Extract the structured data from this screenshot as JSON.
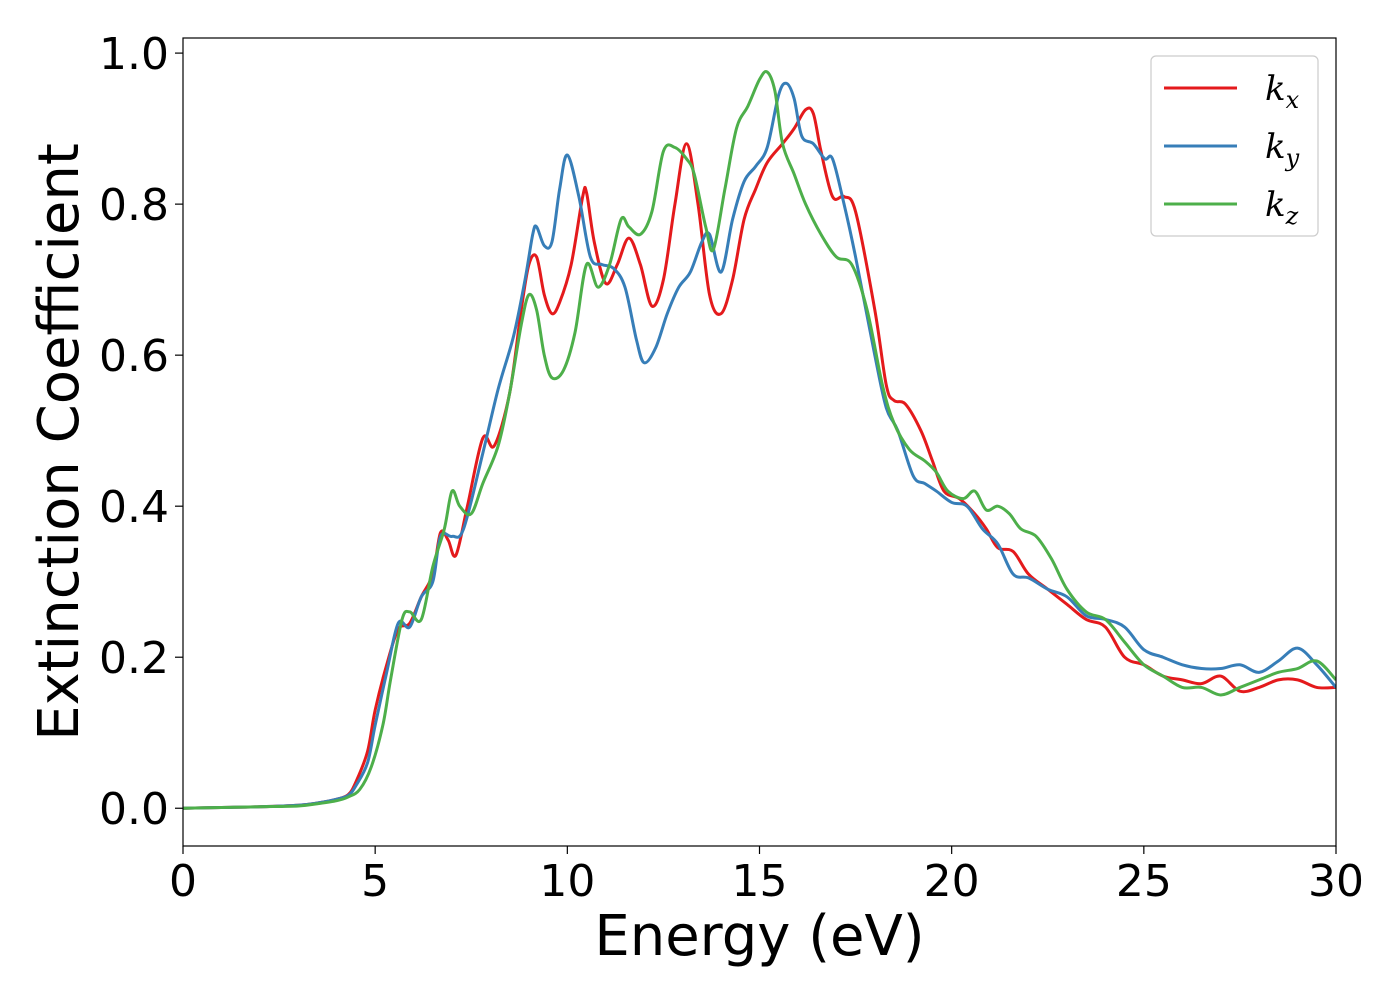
{
  "chart_data": {
    "type": "line",
    "xlabel": "Energy (eV)",
    "ylabel": "Extinction Coefficient",
    "xlim": [
      0,
      30
    ],
    "ylim": [
      -0.05,
      1.02
    ],
    "xticks": [
      0,
      5,
      10,
      15,
      20,
      25,
      30
    ],
    "yticks": [
      0.0,
      0.2,
      0.4,
      0.6,
      0.8,
      1.0
    ],
    "xtick_labels": [
      "0",
      "5",
      "10",
      "15",
      "20",
      "25",
      "30"
    ],
    "ytick_labels": [
      "0.0",
      "0.2",
      "0.4",
      "0.6",
      "0.8",
      "1.0"
    ],
    "grid": false,
    "legend_position": "top-right",
    "series": [
      {
        "name": "kx",
        "label_main": "k",
        "label_sub": "x",
        "color": "#e41a1c",
        "x": [
          0,
          1,
          2,
          3,
          3.5,
          4,
          4.3,
          4.5,
          4.8,
          5.0,
          5.3,
          5.6,
          5.9,
          6.2,
          6.5,
          6.7,
          6.9,
          7.1,
          7.4,
          7.8,
          8.1,
          8.5,
          8.8,
          9.0,
          9.2,
          9.4,
          9.6,
          9.8,
          10.1,
          10.4,
          10.5,
          10.7,
          11.0,
          11.3,
          11.6,
          11.9,
          12.2,
          12.5,
          12.8,
          13.1,
          13.4,
          13.7,
          14.0,
          14.3,
          14.6,
          14.9,
          15.2,
          15.6,
          15.9,
          16.2,
          16.4,
          16.6,
          16.9,
          17.2,
          17.5,
          18.0,
          18.3,
          18.5,
          18.8,
          19.2,
          19.5,
          19.8,
          20.2,
          20.6,
          20.9,
          21.2,
          21.6,
          22.0,
          22.5,
          23.0,
          23.5,
          24.0,
          24.5,
          25.0,
          25.5,
          26.0,
          26.5,
          27.0,
          27.5,
          28.0,
          28.5,
          29.0,
          29.5,
          30.0
        ],
        "y": [
          0.0,
          0.001,
          0.002,
          0.004,
          0.007,
          0.012,
          0.018,
          0.035,
          0.075,
          0.13,
          0.19,
          0.237,
          0.245,
          0.28,
          0.31,
          0.365,
          0.355,
          0.335,
          0.4,
          0.49,
          0.48,
          0.55,
          0.66,
          0.72,
          0.73,
          0.68,
          0.655,
          0.67,
          0.72,
          0.81,
          0.815,
          0.75,
          0.695,
          0.72,
          0.755,
          0.72,
          0.665,
          0.7,
          0.8,
          0.88,
          0.8,
          0.68,
          0.655,
          0.7,
          0.78,
          0.82,
          0.855,
          0.88,
          0.9,
          0.925,
          0.92,
          0.87,
          0.81,
          0.81,
          0.79,
          0.66,
          0.56,
          0.54,
          0.535,
          0.5,
          0.46,
          0.42,
          0.41,
          0.39,
          0.37,
          0.345,
          0.34,
          0.31,
          0.29,
          0.27,
          0.25,
          0.24,
          0.2,
          0.19,
          0.175,
          0.17,
          0.165,
          0.175,
          0.155,
          0.16,
          0.17,
          0.17,
          0.16,
          0.16
        ]
      },
      {
        "name": "ky",
        "label_main": "k",
        "label_sub": "y",
        "color": "#377eb8",
        "x": [
          0,
          1,
          2,
          3,
          3.5,
          4,
          4.3,
          4.5,
          4.8,
          5.0,
          5.3,
          5.6,
          5.9,
          6.2,
          6.5,
          6.7,
          7.0,
          7.3,
          7.8,
          8.2,
          8.6,
          8.9,
          9.1,
          9.2,
          9.4,
          9.6,
          9.8,
          10.0,
          10.3,
          10.6,
          10.9,
          11.2,
          11.5,
          11.8,
          12.0,
          12.3,
          12.6,
          12.9,
          13.2,
          13.5,
          13.7,
          14.0,
          14.3,
          14.6,
          14.9,
          15.2,
          15.5,
          15.7,
          15.9,
          16.1,
          16.4,
          16.7,
          16.9,
          17.2,
          17.5,
          18.0,
          18.3,
          18.6,
          19.0,
          19.3,
          19.6,
          20.0,
          20.4,
          20.8,
          21.2,
          21.6,
          22.0,
          22.5,
          23.0,
          23.5,
          24.0,
          24.5,
          25.0,
          25.5,
          26.0,
          26.5,
          27.0,
          27.5,
          28.0,
          28.5,
          29.0,
          29.5,
          30.0
        ],
        "y": [
          0.0,
          0.001,
          0.002,
          0.004,
          0.007,
          0.012,
          0.017,
          0.03,
          0.06,
          0.11,
          0.18,
          0.245,
          0.24,
          0.28,
          0.3,
          0.36,
          0.36,
          0.37,
          0.47,
          0.555,
          0.625,
          0.7,
          0.76,
          0.77,
          0.745,
          0.75,
          0.82,
          0.865,
          0.81,
          0.73,
          0.72,
          0.715,
          0.69,
          0.62,
          0.59,
          0.61,
          0.655,
          0.69,
          0.71,
          0.75,
          0.76,
          0.71,
          0.78,
          0.83,
          0.85,
          0.875,
          0.945,
          0.96,
          0.94,
          0.89,
          0.88,
          0.86,
          0.86,
          0.8,
          0.73,
          0.6,
          0.53,
          0.5,
          0.44,
          0.43,
          0.42,
          0.405,
          0.4,
          0.37,
          0.35,
          0.31,
          0.305,
          0.29,
          0.28,
          0.255,
          0.25,
          0.24,
          0.21,
          0.2,
          0.19,
          0.185,
          0.185,
          0.19,
          0.18,
          0.195,
          0.212,
          0.19,
          0.16
        ]
      },
      {
        "name": "kz",
        "label_main": "k",
        "label_sub": "z",
        "color": "#4daf4a",
        "x": [
          0,
          1,
          2,
          3,
          3.5,
          4,
          4.3,
          4.6,
          4.9,
          5.2,
          5.4,
          5.7,
          5.9,
          6.2,
          6.5,
          6.8,
          7.0,
          7.2,
          7.5,
          7.8,
          8.2,
          8.5,
          8.8,
          9.0,
          9.2,
          9.4,
          9.6,
          9.9,
          10.2,
          10.5,
          10.8,
          11.1,
          11.4,
          11.6,
          11.9,
          12.2,
          12.5,
          12.8,
          13.1,
          13.3,
          13.6,
          13.8,
          14.1,
          14.4,
          14.7,
          15.0,
          15.2,
          15.4,
          15.6,
          15.9,
          16.2,
          16.6,
          17.0,
          17.4,
          17.8,
          18.2,
          18.5,
          18.9,
          19.3,
          19.6,
          19.9,
          20.3,
          20.6,
          20.9,
          21.2,
          21.5,
          21.8,
          22.2,
          22.6,
          23.0,
          23.5,
          24.0,
          24.5,
          25.0,
          25.5,
          26.0,
          26.5,
          27.0,
          27.5,
          28.0,
          28.5,
          29.0,
          29.5,
          30.0
        ],
        "y": [
          0.0,
          0.001,
          0.002,
          0.003,
          0.006,
          0.01,
          0.015,
          0.025,
          0.055,
          0.11,
          0.17,
          0.25,
          0.26,
          0.25,
          0.32,
          0.37,
          0.42,
          0.4,
          0.39,
          0.43,
          0.48,
          0.55,
          0.64,
          0.68,
          0.66,
          0.6,
          0.57,
          0.58,
          0.63,
          0.72,
          0.69,
          0.72,
          0.78,
          0.77,
          0.76,
          0.79,
          0.87,
          0.875,
          0.86,
          0.84,
          0.77,
          0.74,
          0.82,
          0.9,
          0.93,
          0.965,
          0.975,
          0.95,
          0.88,
          0.84,
          0.8,
          0.76,
          0.73,
          0.72,
          0.66,
          0.56,
          0.51,
          0.475,
          0.46,
          0.445,
          0.42,
          0.41,
          0.42,
          0.395,
          0.4,
          0.39,
          0.37,
          0.36,
          0.33,
          0.29,
          0.26,
          0.25,
          0.22,
          0.19,
          0.175,
          0.16,
          0.16,
          0.15,
          0.16,
          0.17,
          0.18,
          0.185,
          0.195,
          0.17
        ]
      }
    ]
  }
}
